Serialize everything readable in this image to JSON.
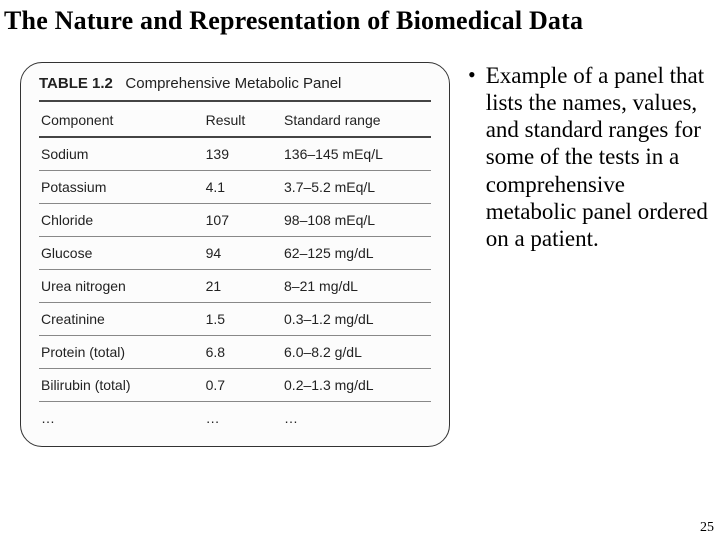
{
  "slide": {
    "title": "The Nature and Representation of Biomedical Data",
    "page_number": "25"
  },
  "table": {
    "label": "TABLE 1.2",
    "subtitle": "Comprehensive Metabolic Panel",
    "columns": [
      "Component",
      "Result",
      "Standard range"
    ],
    "rows": [
      [
        "Sodium",
        "139",
        "136–145 mEq/L"
      ],
      [
        "Potassium",
        "4.1",
        "3.7–5.2 mEq/L"
      ],
      [
        "Chloride",
        "107",
        "98–108 mEq/L"
      ],
      [
        "Glucose",
        "94",
        "62–125 mg/dL"
      ],
      [
        "Urea nitrogen",
        "21",
        "8–21 mg/dL"
      ],
      [
        "Creatinine",
        "1.5",
        "0.3–1.2 mg/dL"
      ],
      [
        "Protein (total)",
        "6.8",
        "6.0–8.2 g/dL"
      ],
      [
        "Bilirubin (total)",
        "0.7",
        "0.2–1.3 mg/dL"
      ],
      [
        "…",
        "…",
        "…"
      ]
    ]
  },
  "bullet": {
    "text": "Example of a panel that lists the names, values, and standard ranges for some of the tests in a comprehensive metabolic panel ordered on a patient."
  }
}
